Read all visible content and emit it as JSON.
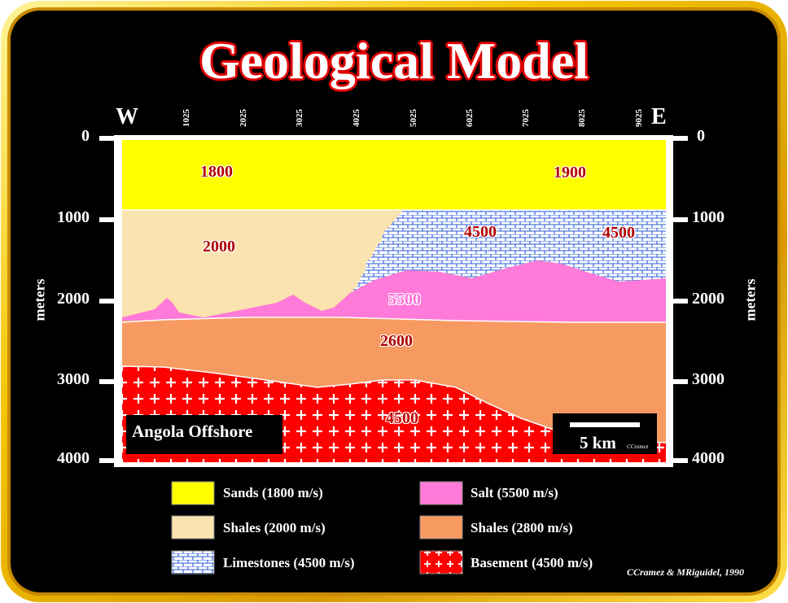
{
  "title": "Geological Model",
  "directions": {
    "west": "W",
    "east": "E"
  },
  "x_ticks": [
    "1025",
    "2025",
    "3025",
    "4025",
    "5025",
    "6025",
    "7025",
    "8025",
    "9025"
  ],
  "depth_ticks": [
    "0",
    "1000",
    "2000",
    "3000",
    "4000"
  ],
  "depth_unit": "meters",
  "layer_labels": {
    "sands_west": "1800",
    "sands_east": "1900",
    "shales_upper": "2000",
    "limestone_a": "4500",
    "limestone_b": "4500",
    "salt": "5500",
    "shales_lower": "2600",
    "basement": "4500"
  },
  "location_label": "Angola Offshore",
  "scale_bar": {
    "label": "5 km",
    "small_credit": "CCramez"
  },
  "legend": [
    {
      "label": "Sands (1800 m/s)",
      "color": "#ffff00",
      "pattern": "solid"
    },
    {
      "label": "Salt (5500 m/s)",
      "color": "#ff7ad9",
      "pattern": "solid"
    },
    {
      "label": "Shales (2000 m/s)",
      "color": "#fbe3b0",
      "pattern": "solid"
    },
    {
      "label": "Shales (2800 m/s)",
      "color": "#f79a62",
      "pattern": "solid"
    },
    {
      "label": "Limestones (4500 m/s)",
      "color": "#ffffff",
      "pattern": "bricks-blue"
    },
    {
      "label": "Basement (4500 m/s)",
      "color": "#ff0000",
      "pattern": "crosses-white"
    }
  ],
  "credit": "CCramez & MRiguidel, 1990",
  "colors": {
    "frame_gold": "#f5c400",
    "background": "#000000",
    "sands": "#ffff00",
    "shales_upper": "#fbe3b0",
    "limestone_pattern": "#2a5bd8",
    "salt": "#ff7ad9",
    "shales_lower": "#f79a62",
    "basement": "#ff0000"
  }
}
